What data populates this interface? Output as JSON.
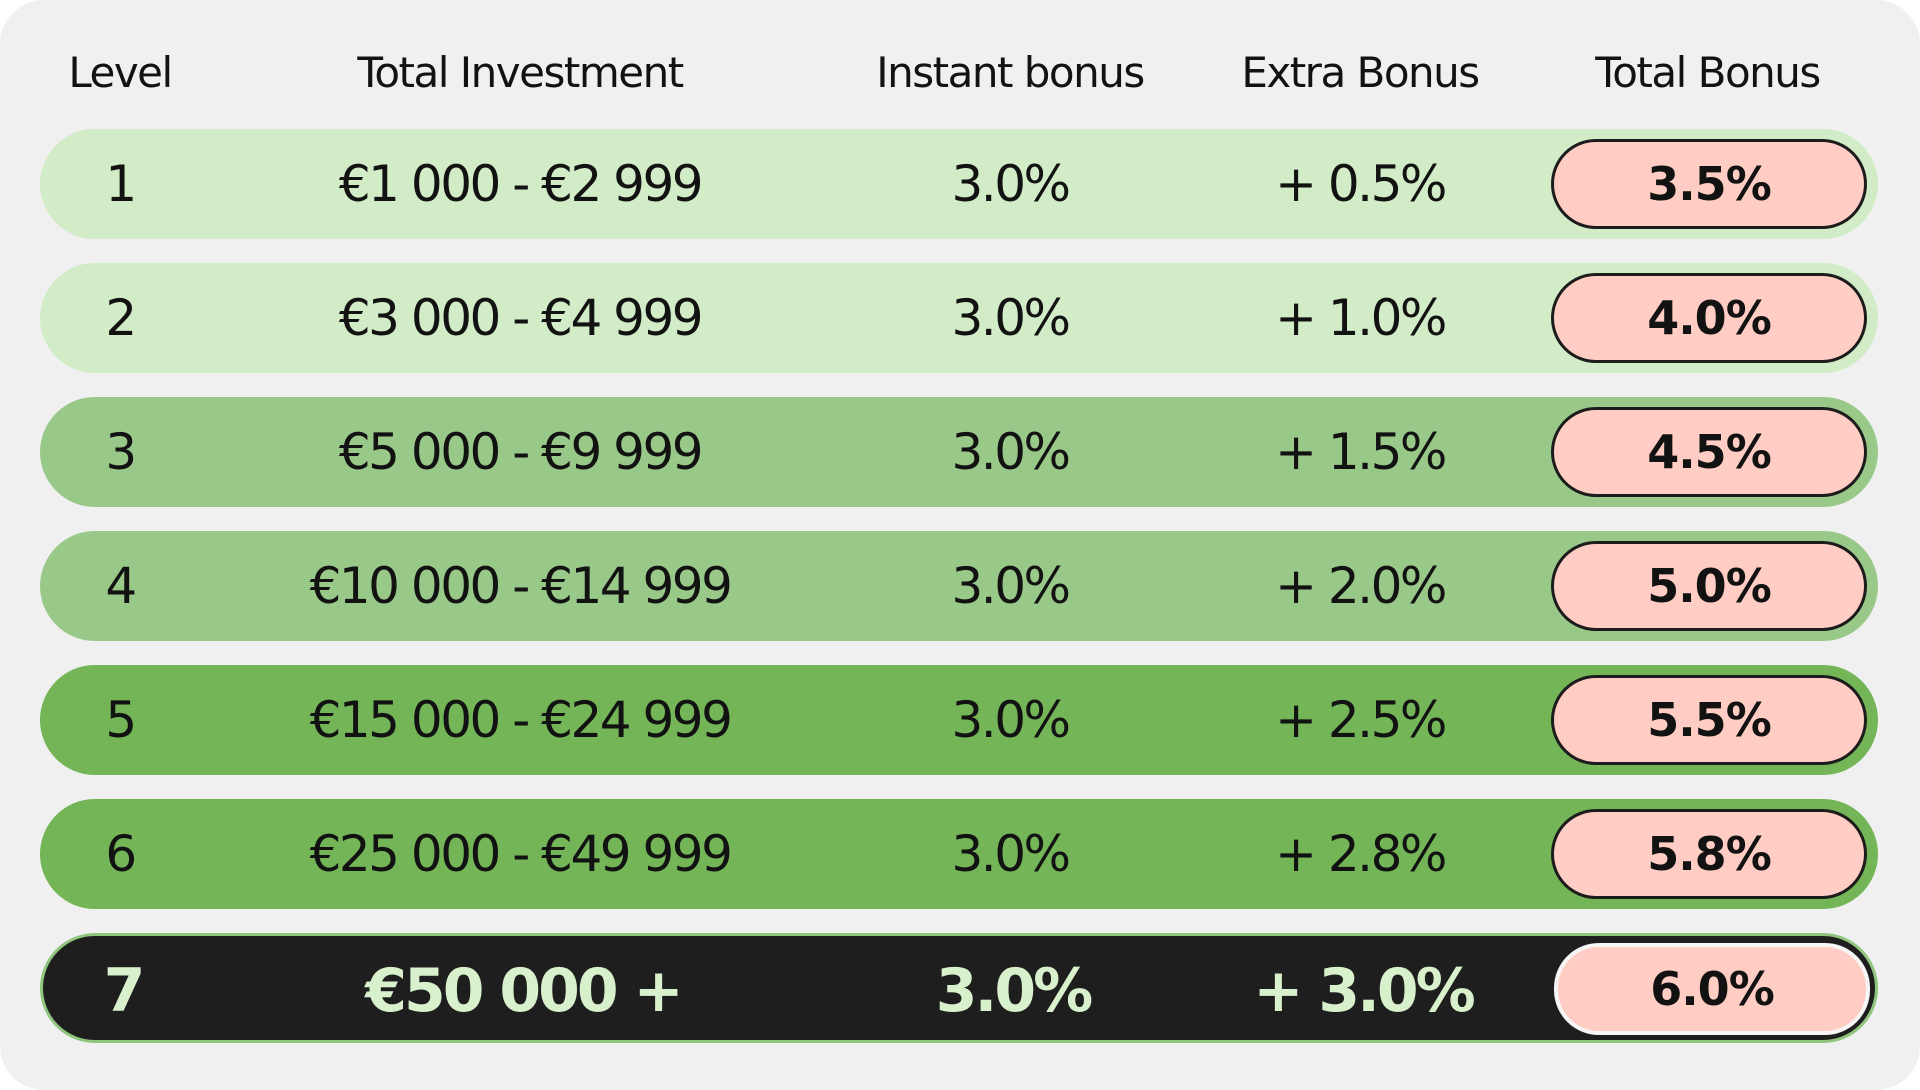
{
  "colors": {
    "card_background": "#f0f0f0",
    "tier_light": "#d1ecc6",
    "tier_medium": "#99c988",
    "tier_strong": "#73b557",
    "tier_top": "#1e1e1e",
    "pill_background": "#ffcdc3",
    "final_row_text": "#d8f1cc"
  },
  "header": {
    "level": "Level",
    "total_investment": "Total Investment",
    "instant_bonus": "Instant bonus",
    "extra_bonus": "Extra Bonus",
    "total_bonus": "Total Bonus"
  },
  "rows": [
    {
      "level": "1",
      "range": "€1 000 - €2 999",
      "instant": "3.0%",
      "extra": "+ 0.5%",
      "total": "3.5%",
      "tier": "light"
    },
    {
      "level": "2",
      "range": "€3 000 - €4 999",
      "instant": "3.0%",
      "extra": "+ 1.0%",
      "total": "4.0%",
      "tier": "light"
    },
    {
      "level": "3",
      "range": "€5 000 - €9 999",
      "instant": "3.0%",
      "extra": "+ 1.5%",
      "total": "4.5%",
      "tier": "medium"
    },
    {
      "level": "4",
      "range": "€10 000 - €14 999",
      "instant": "3.0%",
      "extra": "+ 2.0%",
      "total": "5.0%",
      "tier": "medium"
    },
    {
      "level": "5",
      "range": "€15 000 - €24 999",
      "instant": "3.0%",
      "extra": "+ 2.5%",
      "total": "5.5%",
      "tier": "strong"
    },
    {
      "level": "6",
      "range": "€25 000 - €49 999",
      "instant": "3.0%",
      "extra": "+ 2.8%",
      "total": "5.8%",
      "tier": "strong"
    },
    {
      "level": "7",
      "range": "€50 000 +",
      "instant": "3.0%",
      "extra": "+ 3.0%",
      "total": "6.0%",
      "tier": "top"
    }
  ]
}
